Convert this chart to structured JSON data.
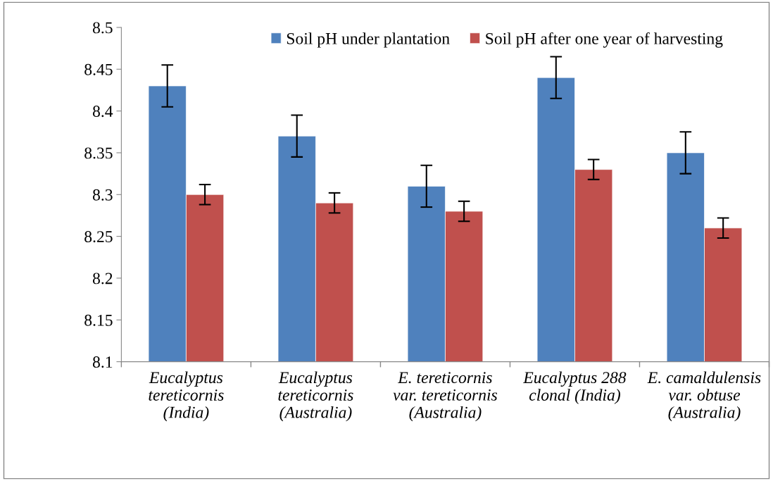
{
  "chart_data": {
    "type": "bar",
    "categories": [
      "Eucalyptus\ntereticornis\n(India)",
      "Eucalyptus\ntereticornis\n(Australia)",
      "E. tereticornis\nvar. tereticornis\n(Australia)",
      "Eucalyptus 288\nclonal (India)",
      "E. camaldulensis\nvar. obtuse\n(Australia)"
    ],
    "series": [
      {
        "name": "Soil pH under plantation",
        "color": "#4f81bd",
        "values": [
          8.43,
          8.37,
          8.31,
          8.44,
          8.35
        ],
        "errors": [
          0.025,
          0.025,
          0.025,
          0.025,
          0.025
        ]
      },
      {
        "name": "Soil pH after one year of harvesting",
        "color": "#c0504d",
        "values": [
          8.3,
          8.29,
          8.28,
          8.33,
          8.26
        ],
        "errors": [
          0.012,
          0.012,
          0.012,
          0.012,
          0.012
        ]
      }
    ],
    "ylim": [
      8.1,
      8.5
    ],
    "yticks": [
      8.1,
      8.15,
      8.2,
      8.25,
      8.3,
      8.35,
      8.4,
      8.45,
      8.5
    ],
    "grid": false,
    "legend": "top"
  }
}
